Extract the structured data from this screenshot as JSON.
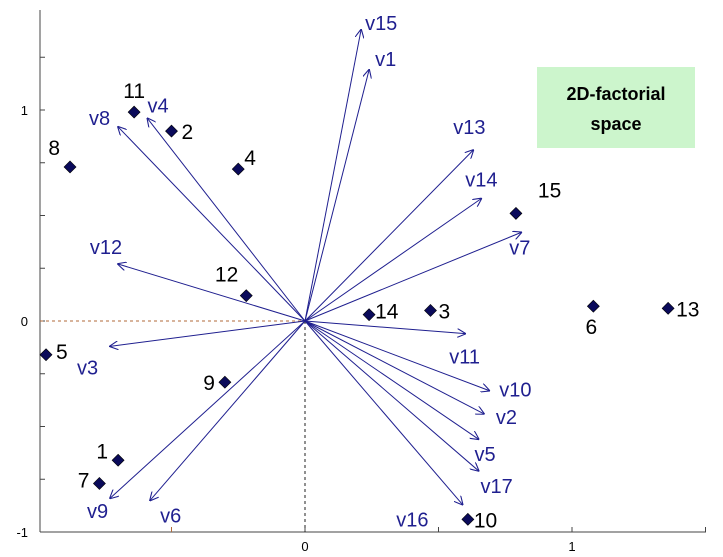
{
  "chart_data": {
    "type": "scatter",
    "title": "2D-factorial space",
    "title_lines": [
      "2D-factorial",
      "space"
    ],
    "xlabel": "",
    "ylabel": "",
    "xlim": [
      -1.0,
      1.5
    ],
    "ylim": [
      -1.0,
      1.4
    ],
    "x_ticks": [
      0,
      1
    ],
    "x_tick_labels": [
      "0",
      "1"
    ],
    "y_ticks": [
      -1,
      0,
      1
    ],
    "y_tick_labels": [
      "-1",
      "0",
      "1"
    ],
    "grid": false,
    "colors": {
      "vector": "#1f1f8f",
      "vector_label": "#1f1f8f",
      "point": "#0a0a5a",
      "title_box_bg": "#ccf5cc",
      "reference_line": "#b06a3a"
    },
    "points": [
      {
        "label": "1",
        "x": -0.7,
        "y": -0.66
      },
      {
        "label": "2",
        "x": -0.5,
        "y": 0.9
      },
      {
        "label": "3",
        "x": 0.47,
        "y": 0.05
      },
      {
        "label": "4",
        "x": -0.25,
        "y": 0.72
      },
      {
        "label": "5",
        "x": -0.97,
        "y": -0.16
      },
      {
        "label": "6",
        "x": 1.08,
        "y": 0.07
      },
      {
        "label": "7",
        "x": -0.77,
        "y": -0.77
      },
      {
        "label": "8",
        "x": -0.88,
        "y": 0.73
      },
      {
        "label": "9",
        "x": -0.3,
        "y": -0.29
      },
      {
        "label": "10",
        "x": 0.61,
        "y": -0.94
      },
      {
        "label": "11",
        "x": -0.64,
        "y": 0.99
      },
      {
        "label": "12",
        "x": -0.22,
        "y": 0.12
      },
      {
        "label": "13",
        "x": 1.36,
        "y": 0.06
      },
      {
        "label": "14",
        "x": 0.24,
        "y": 0.03
      },
      {
        "label": "15",
        "x": 0.79,
        "y": 0.51
      }
    ],
    "vectors": [
      {
        "label": "v1",
        "x": 0.24,
        "y": 1.19
      },
      {
        "label": "v2",
        "x": 0.67,
        "y": -0.44
      },
      {
        "label": "v3",
        "x": -0.73,
        "y": -0.12
      },
      {
        "label": "v4",
        "x": -0.59,
        "y": 0.96
      },
      {
        "label": "v5",
        "x": 0.65,
        "y": -0.56
      },
      {
        "label": "v6",
        "x": -0.58,
        "y": -0.85
      },
      {
        "label": "v7",
        "x": 0.81,
        "y": 0.42
      },
      {
        "label": "v8",
        "x": -0.7,
        "y": 0.92
      },
      {
        "label": "v9",
        "x": -0.73,
        "y": -0.84
      },
      {
        "label": "v10",
        "x": 0.69,
        "y": -0.33
      },
      {
        "label": "v11",
        "x": 0.6,
        "y": -0.06
      },
      {
        "label": "v12",
        "x": -0.7,
        "y": 0.27
      },
      {
        "label": "v13",
        "x": 0.63,
        "y": 0.81
      },
      {
        "label": "v14",
        "x": 0.66,
        "y": 0.58
      },
      {
        "label": "v15",
        "x": 0.21,
        "y": 1.38
      },
      {
        "label": "v16",
        "x": 0.59,
        "y": -0.87
      },
      {
        "label": "v17",
        "x": 0.65,
        "y": -0.71
      }
    ]
  }
}
